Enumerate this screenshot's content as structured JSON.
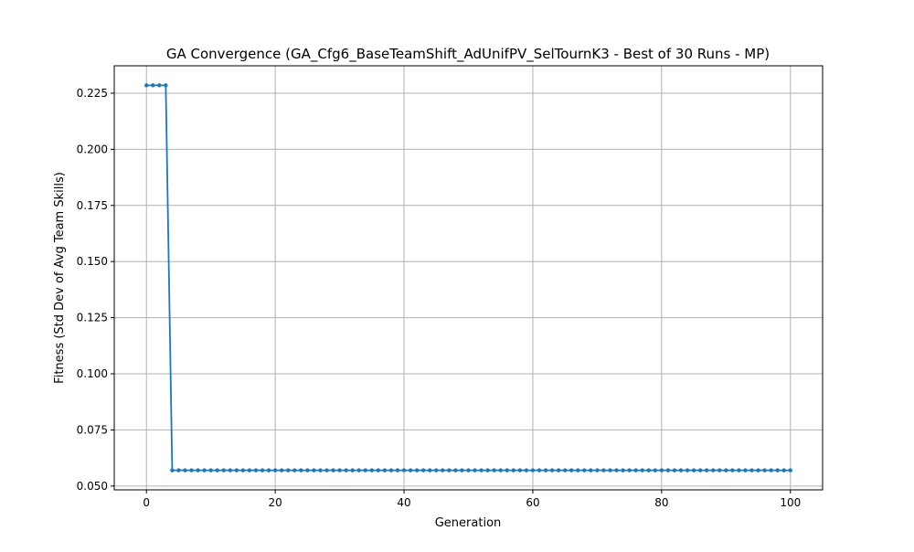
{
  "chart_data": {
    "type": "line",
    "title": "GA Convergence (GA_Cfg6_BaseTeamShift_AdUnifPV_SelTournK3 - Best of 30 Runs - MP)",
    "xlabel": "Generation",
    "ylabel": "Fitness (Std Dev of Avg Team Skills)",
    "xlim": [
      -5,
      105
    ],
    "ylim": [
      0.0483,
      0.2372
    ],
    "grid": true,
    "x_ticks": [
      0,
      20,
      40,
      60,
      80,
      100
    ],
    "x_tick_labels": [
      "0",
      "20",
      "40",
      "60",
      "80",
      "100"
    ],
    "y_ticks": [
      0.05,
      0.075,
      0.1,
      0.125,
      0.15,
      0.175,
      0.2,
      0.225
    ],
    "y_tick_labels": [
      "0.050",
      "0.075",
      "0.100",
      "0.125",
      "0.150",
      "0.175",
      "0.200",
      "0.225"
    ],
    "series": [
      {
        "color": "#1f77b4",
        "marker": "circle",
        "x_start": 0,
        "x_end": 100,
        "x_step": 1,
        "segments": [
          {
            "from": 0,
            "to": 3,
            "value": 0.2285
          },
          {
            "from": 4,
            "to": 100,
            "value": 0.057
          }
        ]
      }
    ]
  }
}
